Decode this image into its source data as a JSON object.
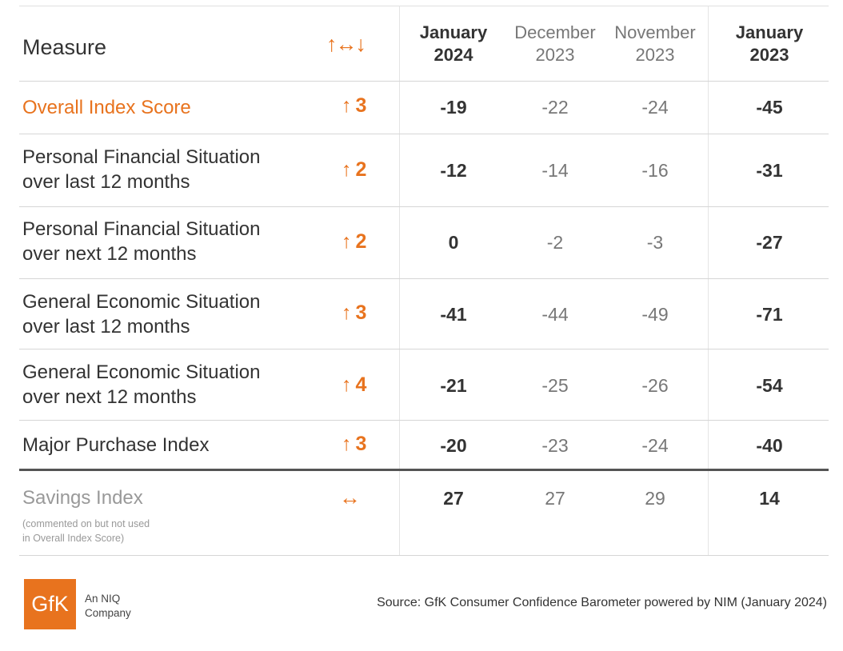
{
  "header": {
    "measure": "Measure",
    "change_arrows": "↑↔↓",
    "columns": [
      {
        "line1": "January",
        "line2": "2024",
        "bold": true
      },
      {
        "line1": "December",
        "line2": "2023",
        "bold": false
      },
      {
        "line1": "November",
        "line2": "2023",
        "bold": false
      },
      {
        "line1": "January",
        "line2": "2023",
        "bold": true
      }
    ]
  },
  "rows": [
    {
      "label1": "Overall Index Score",
      "label2": "",
      "change": "3",
      "direction": "up",
      "values": [
        "-19",
        "-22",
        "-24",
        "-45"
      ]
    },
    {
      "label1": "Personal Financial Situation",
      "label2": "over last 12 months",
      "change": "2",
      "direction": "up",
      "values": [
        "-12",
        "-14",
        "-16",
        "-31"
      ]
    },
    {
      "label1": "Personal Financial Situation",
      "label2": "over next 12 months",
      "change": "2",
      "direction": "up",
      "values": [
        "0",
        "-2",
        "-3",
        "-27"
      ]
    },
    {
      "label1": "General Economic Situation",
      "label2": "over last 12 months",
      "change": "3",
      "direction": "up",
      "values": [
        "-41",
        "-44",
        "-49",
        "-71"
      ]
    },
    {
      "label1": "General Economic Situation",
      "label2": "over next 12 months",
      "change": "4",
      "direction": "up",
      "values": [
        "-21",
        "-25",
        "-26",
        "-54"
      ]
    },
    {
      "label1": "Major Purchase Index",
      "label2": "",
      "change": "3",
      "direction": "up",
      "values": [
        "-20",
        "-23",
        "-24",
        "-40"
      ]
    }
  ],
  "savings": {
    "label": "Savings Index",
    "note1": "(commented on but not used",
    "note2": "in Overall Index Score)",
    "change_symbol": "↔",
    "values": [
      "27",
      "27",
      "29",
      "14"
    ]
  },
  "footer": {
    "logo": "GfK",
    "logo_sub1": "An NIQ",
    "logo_sub2": "Company",
    "source": "Source: GfK Consumer Confidence Barometer powered by NIM (January 2024)"
  },
  "colors": {
    "accent": "#e8731e",
    "text": "#333333",
    "muted": "#999999"
  },
  "chart_data": {
    "type": "table",
    "columns": [
      "Measure",
      "↑↔↓",
      "January 2024",
      "December 2023",
      "November 2023",
      "January 2023"
    ],
    "rows": [
      [
        "Overall Index Score",
        "↑3",
        -19,
        -22,
        -24,
        -45
      ],
      [
        "Personal Financial Situation over last 12 months",
        "↑2",
        -12,
        -14,
        -16,
        -31
      ],
      [
        "Personal Financial Situation over next 12 months",
        "↑2",
        0,
        -2,
        -3,
        -27
      ],
      [
        "General Economic Situation over last 12 months",
        "↑3",
        -41,
        -44,
        -49,
        -71
      ],
      [
        "General Economic Situation over next 12 months",
        "↑4",
        -21,
        -25,
        -26,
        -54
      ],
      [
        "Major Purchase Index",
        "↑3",
        -20,
        -23,
        -24,
        -40
      ],
      [
        "Savings Index",
        "↔",
        27,
        27,
        29,
        14
      ]
    ]
  }
}
